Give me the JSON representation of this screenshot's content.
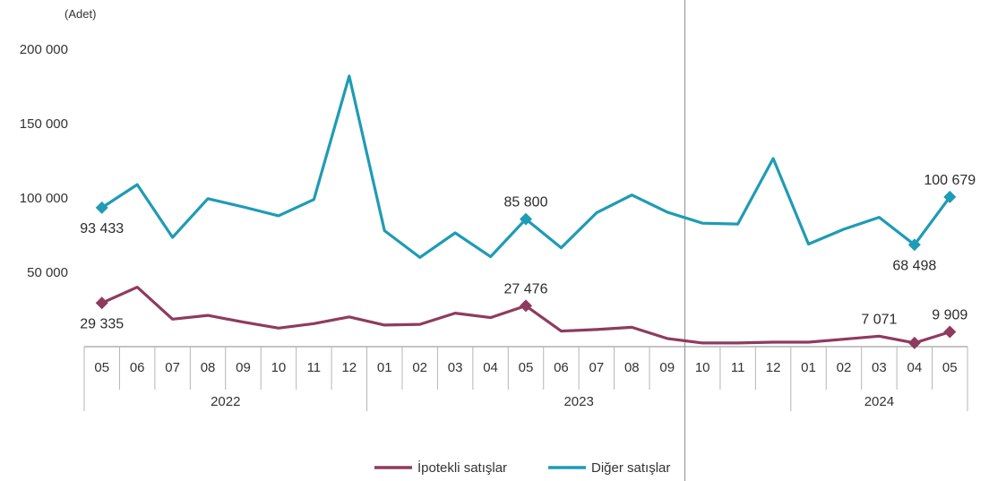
{
  "chart_data": {
    "type": "line",
    "unit_label": "(Adet)",
    "y_ticks": [
      "200 000",
      "150 000",
      "100 000",
      "50 000"
    ],
    "y_tick_values": [
      200000,
      150000,
      100000,
      50000
    ],
    "ylim": [
      0,
      200000
    ],
    "categories": [
      "05",
      "06",
      "07",
      "08",
      "09",
      "10",
      "11",
      "12",
      "01",
      "02",
      "03",
      "04",
      "05",
      "06",
      "07",
      "08",
      "09",
      "10",
      "11",
      "12",
      "01",
      "02",
      "03",
      "04",
      "05"
    ],
    "years": [
      {
        "label": "2022",
        "start": 0,
        "end": 7
      },
      {
        "label": "2023",
        "start": 8,
        "end": 19
      },
      {
        "label": "2024",
        "start": 20,
        "end": 24
      }
    ],
    "series": [
      {
        "name": "İpotekli satışlar",
        "color": "#8e3b5f",
        "values": [
          29335,
          40000,
          18500,
          21000,
          16500,
          12500,
          15500,
          20000,
          14500,
          15000,
          22500,
          19500,
          27476,
          10500,
          11500,
          13000,
          5500,
          2500,
          2500,
          3000,
          3000,
          5000,
          7071,
          2500,
          9909
        ],
        "labels": [
          {
            "index": 0,
            "text": "29 335",
            "pos": "below"
          },
          {
            "index": 12,
            "text": "27 476",
            "pos": "above"
          },
          {
            "index": 22,
            "text": "7 071",
            "pos": "above"
          },
          {
            "index": 24,
            "text": "9 909",
            "pos": "above"
          }
        ],
        "markers": [
          0,
          12,
          23,
          24
        ]
      },
      {
        "name": "Diğer satışlar",
        "color": "#1f9bb5",
        "values": [
          93433,
          109000,
          73500,
          99500,
          94000,
          88000,
          99000,
          182000,
          78000,
          60000,
          76500,
          60500,
          85800,
          66500,
          90000,
          102000,
          90500,
          83000,
          82500,
          126500,
          69000,
          79000,
          87000,
          68498,
          100679
        ],
        "labels": [
          {
            "index": 0,
            "text": "93 433",
            "pos": "below"
          },
          {
            "index": 12,
            "text": "85 800",
            "pos": "above"
          },
          {
            "index": 23,
            "text": "68 498",
            "pos": "below"
          },
          {
            "index": 24,
            "text": "100 679",
            "pos": "above"
          }
        ],
        "markers": [
          0,
          12,
          23,
          24
        ]
      }
    ],
    "divider_after_index": 16,
    "legend_position": "bottom-center",
    "grid": false
  }
}
